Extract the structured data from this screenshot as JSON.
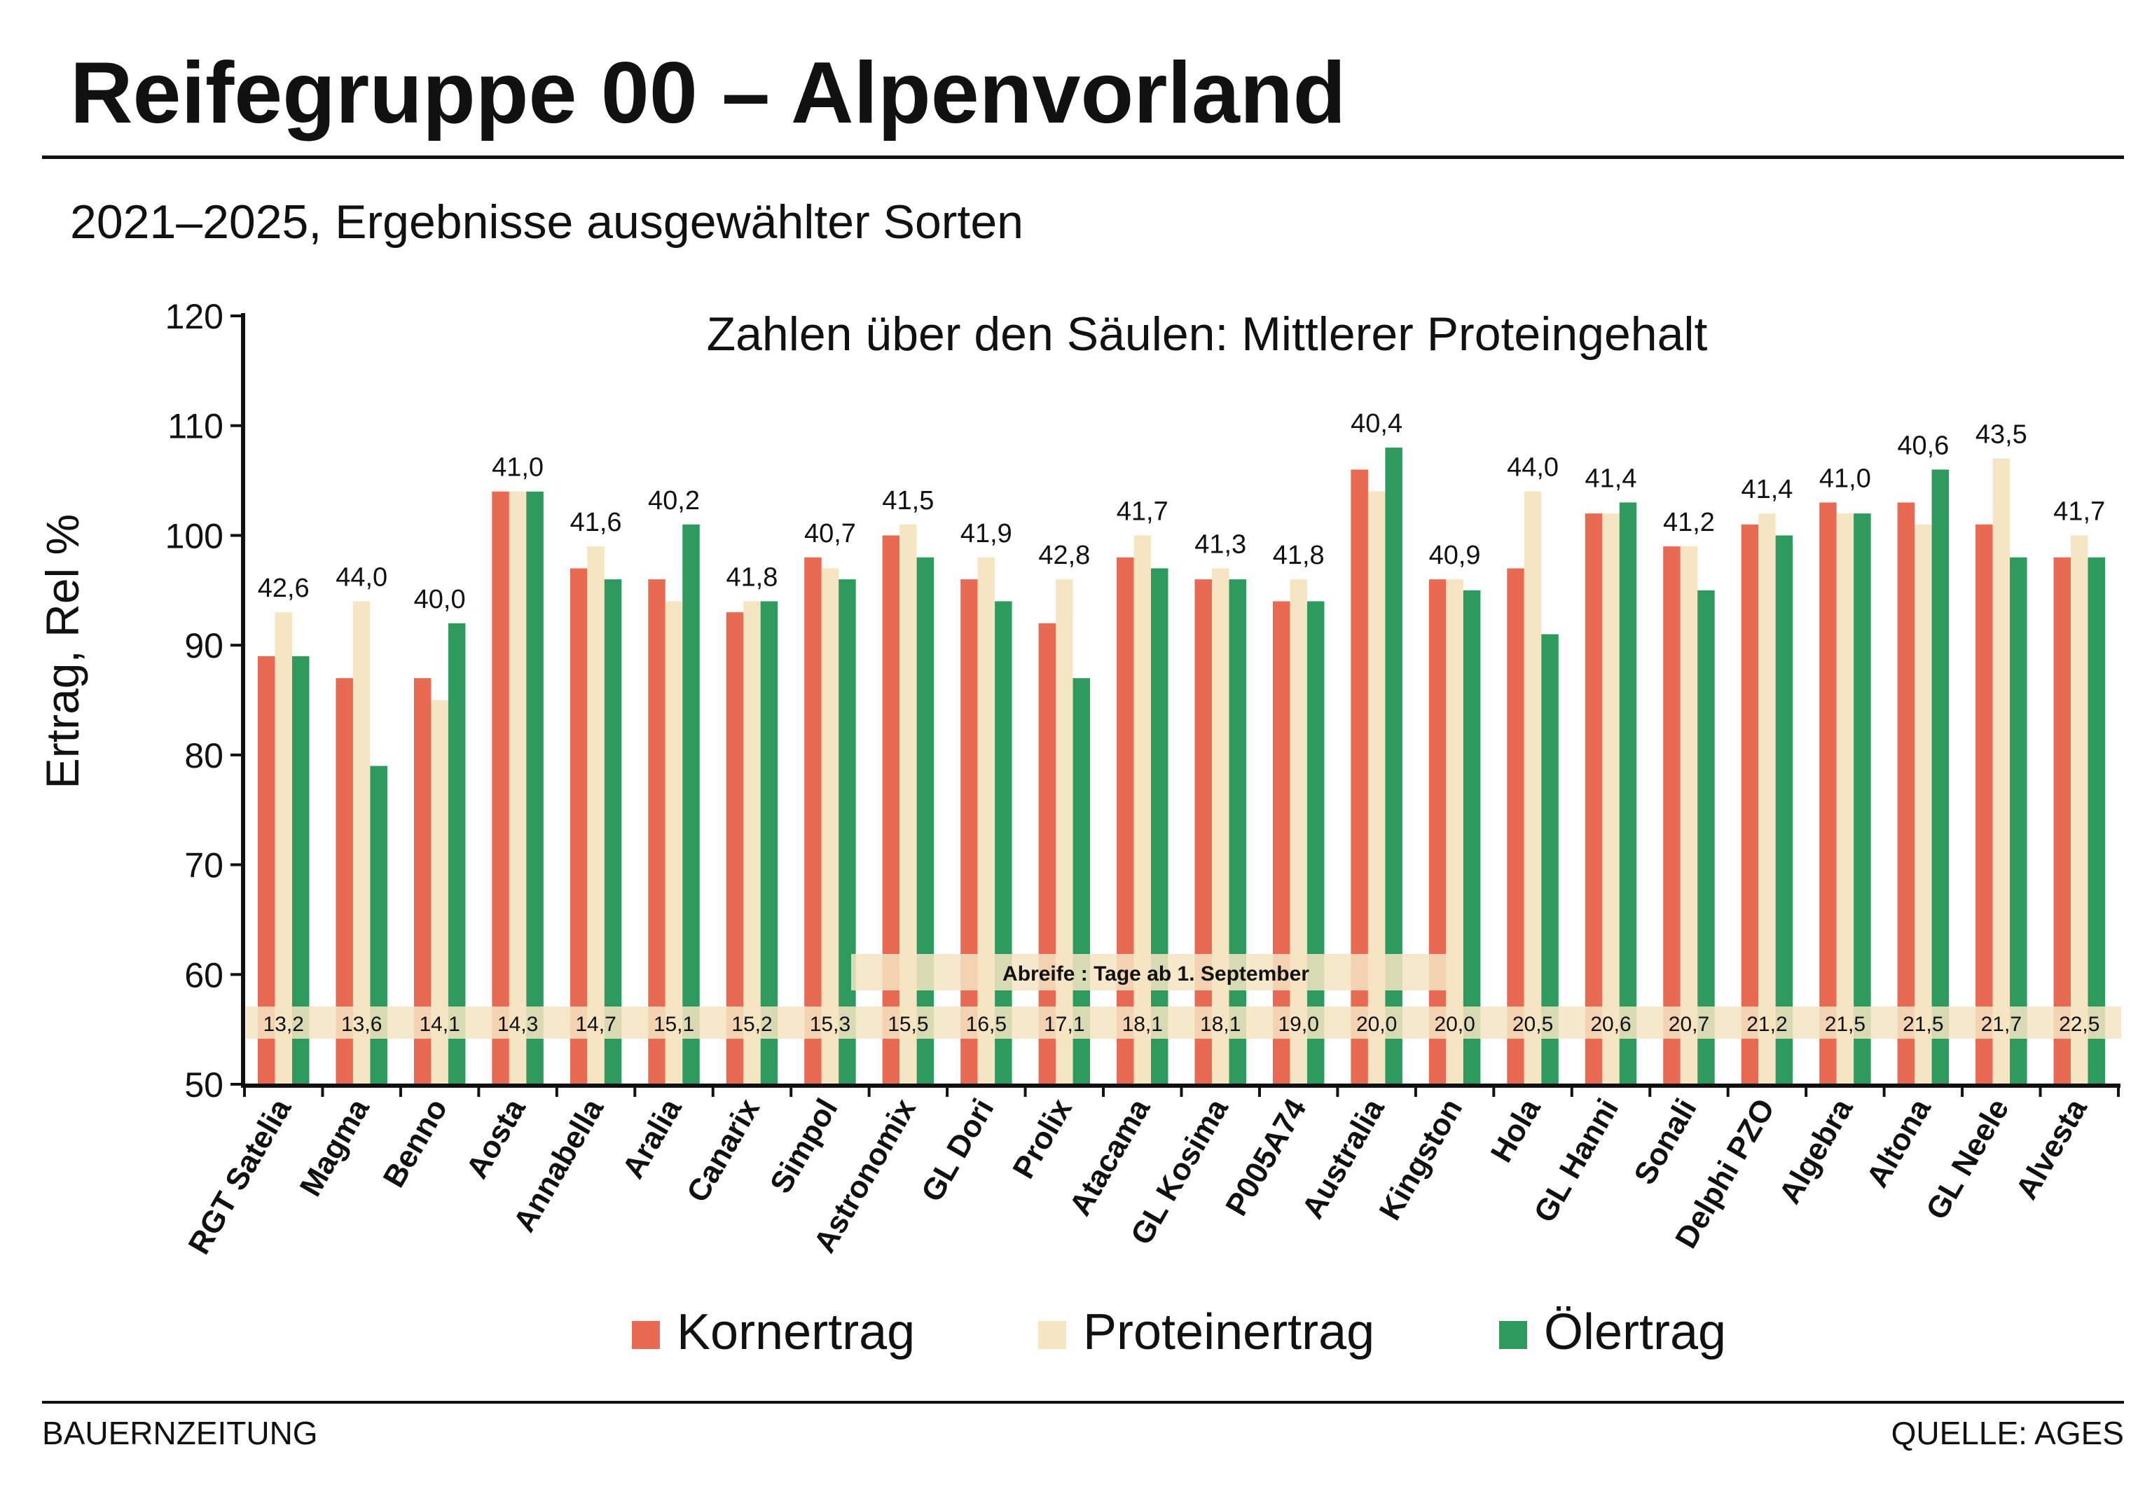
{
  "title": "Reifegruppe 00 – Alpenvorland",
  "subtitle": "2021–2025, Ergebnisse ausgewählter Sorten",
  "footer": {
    "left": "BAUERNZEITUNG",
    "right": "QUELLE: AGES"
  },
  "chart_data": {
    "type": "bar",
    "annotation": "Zahlen über den Säulen: Mittlerer Proteingehalt",
    "ylabel": "Ertrag, Rel %",
    "xlabel": "",
    "ylim": [
      50,
      120
    ],
    "yticks": [
      50,
      60,
      70,
      80,
      90,
      100,
      110,
      120
    ],
    "grid": false,
    "legend": "bottom",
    "categories": [
      "RGT Satelia",
      "Magma",
      "Benno",
      "Aosta",
      "Annabella",
      "Aralia",
      "Canarix",
      "Simpol",
      "Astronomix",
      "GL Dori",
      "Prolix",
      "Atacama",
      "GL Kosima",
      "P005A74",
      "Australia",
      "Kingston",
      "Hola",
      "GL Hanni",
      "Sonali",
      "Delphi PZO",
      "Algebra",
      "Altona",
      "GL Neele",
      "Alvesta"
    ],
    "series": [
      {
        "name": "Kornertrag",
        "color": "#e86a52",
        "values": [
          89,
          87,
          87,
          104,
          97,
          96,
          93,
          98,
          100,
          96,
          92,
          98,
          96,
          94,
          106,
          96,
          97,
          102,
          99,
          101,
          103,
          103,
          101,
          98
        ]
      },
      {
        "name": "Proteinertrag",
        "color": "#f5e5c2",
        "values": [
          93,
          94,
          85,
          104,
          99,
          94,
          94,
          97,
          101,
          98,
          96,
          100,
          97,
          96,
          104,
          96,
          104,
          102,
          99,
          102,
          102,
          101,
          107,
          100
        ]
      },
      {
        "name": "Ölertrag",
        "color": "#2e9a5e",
        "values": [
          89,
          79,
          92,
          104,
          96,
          101,
          94,
          96,
          98,
          94,
          87,
          97,
          96,
          94,
          108,
          95,
          91,
          103,
          95,
          100,
          102,
          106,
          98,
          98
        ]
      }
    ],
    "protein_content_labels": [
      "42,6",
      "44,0",
      "40,0",
      "41,0",
      "41,6",
      "40,2",
      "41,8",
      "40,7",
      "41,5",
      "41,9",
      "42,8",
      "41,7",
      "41,3",
      "41,8",
      "40,4",
      "40,9",
      "44,0",
      "41,4",
      "41,2",
      "41,4",
      "41,0",
      "40,6",
      "43,5",
      "41,7"
    ],
    "maturity": {
      "label": "Abreife : Tage ab 1. September",
      "values": [
        "13,2",
        "13,6",
        "14,1",
        "14,3",
        "14,7",
        "15,1",
        "15,2",
        "15,3",
        "15,5",
        "16,5",
        "17,1",
        "18,1",
        "18,1",
        "19,0",
        "20,0",
        "20,0",
        "20,5",
        "20,6",
        "20,7",
        "21,2",
        "21,5",
        "21,5",
        "21,7",
        "22,5"
      ]
    }
  }
}
